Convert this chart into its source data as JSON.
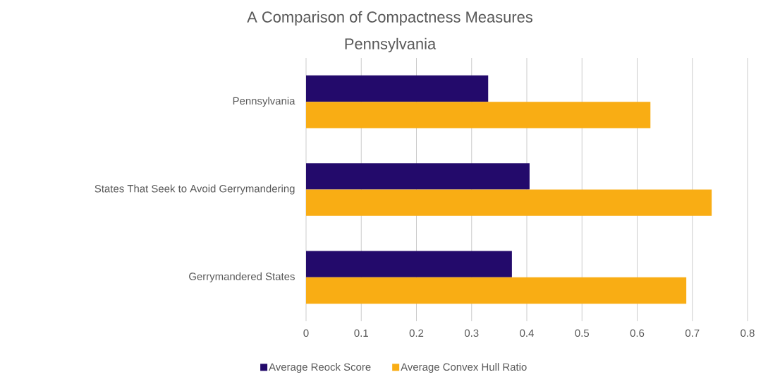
{
  "chart_data": {
    "type": "bar",
    "orientation": "horizontal",
    "title": "A Comparison of Compactness Measures",
    "subtitle": "Pennsylvania",
    "categories": [
      "Pennsylvania",
      "States That Seek to Avoid Gerrymandering",
      "Gerrymandered States"
    ],
    "series": [
      {
        "name": "Average Reock Score",
        "color": "#230a6b",
        "values": [
          0.33,
          0.405,
          0.373
        ]
      },
      {
        "name": "Average Convex Hull Ratio",
        "color": "#f9ad14",
        "values": [
          0.624,
          0.735,
          0.689
        ]
      }
    ],
    "xlim": [
      0,
      0.8
    ],
    "xticks": [
      0,
      0.1,
      0.2,
      0.3,
      0.4,
      0.5,
      0.6,
      0.7,
      0.8
    ],
    "grid": "x",
    "legend": "bottom"
  }
}
